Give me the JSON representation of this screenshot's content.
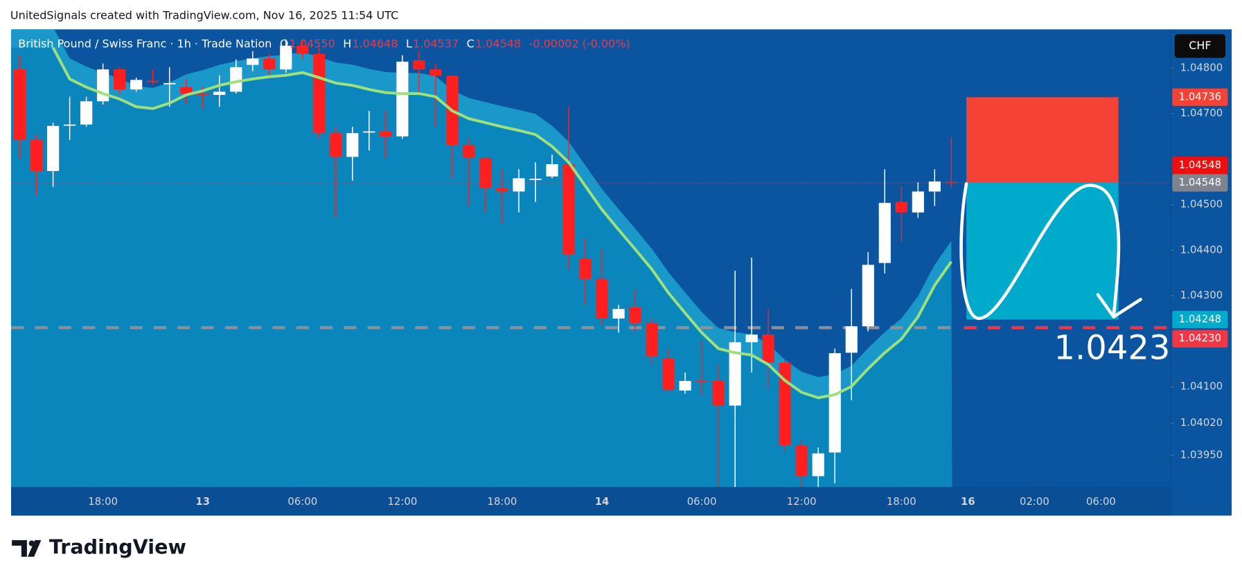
{
  "header": {
    "title": "UnitedSignals created with TradingView.com, Nov 16, 2025 11:54 UTC"
  },
  "logo": "TradingView",
  "currency_button": "CHF",
  "chart_data": {
    "type": "candlestick",
    "legend": {
      "symbol": "British Pound / Swiss Franc · 1h · Trade Nation",
      "ohlc": [
        {
          "key": "O",
          "value": "1.04550"
        },
        {
          "key": "H",
          "value": "1.04648"
        },
        {
          "key": "L",
          "value": "1.04537"
        },
        {
          "key": "C",
          "value": "1.04548"
        }
      ],
      "change": "-0.00002 (-0.00%)"
    },
    "categories": [
      null,
      null,
      null,
      null,
      null,
      "18:00",
      null,
      null,
      null,
      null,
      null,
      "13",
      null,
      null,
      null,
      null,
      null,
      "06:00",
      null,
      null,
      null,
      null,
      null,
      "12:00",
      null,
      null,
      null,
      null,
      null,
      "18:00",
      null,
      null,
      null,
      null,
      null,
      "14",
      null,
      null,
      null,
      null,
      null,
      "06:00",
      null,
      null,
      null,
      null,
      null,
      "12:00",
      null,
      null,
      null,
      null,
      null,
      "18:00",
      null,
      null,
      null,
      "16",
      null,
      null,
      null,
      "02:00",
      null,
      null,
      null,
      "06:00",
      null,
      null,
      null,
      null
    ],
    "open": [
      1.04797,
      1.04642,
      1.04574,
      1.04675,
      1.04676,
      1.04727,
      1.04797,
      1.04753,
      1.04772,
      1.04765,
      1.04758,
      1.04744,
      1.04741,
      1.04748,
      1.04807,
      1.04821,
      1.04797,
      1.04849,
      1.04831,
      1.04657,
      1.04605,
      1.04659,
      1.04661,
      1.0465,
      1.04817,
      1.04797,
      1.04783,
      1.04631,
      1.04602,
      1.04537,
      1.04529,
      1.04556,
      1.04562,
      1.04589,
      1.04382,
      1.04337,
      1.0425,
      1.04275,
      1.0424,
      1.04163,
      1.04092,
      1.04114,
      1.04113,
      1.04059,
      1.04198,
      1.04215,
      1.04153,
      1.03972,
      1.03904,
      1.03956,
      1.04175,
      1.04233,
      1.04372,
      1.04506,
      1.04483,
      1.04529,
      1.0455,
      null,
      null,
      null,
      null,
      null,
      null,
      null,
      null,
      null,
      null,
      null,
      null,
      null
    ],
    "high": [
      1.04828,
      1.04654,
      1.0468,
      1.04737,
      1.04737,
      1.0481,
      1.04802,
      1.04779,
      1.04797,
      1.04802,
      1.04776,
      1.04758,
      1.04784,
      1.04819,
      1.04837,
      1.04831,
      1.04863,
      1.04863,
      1.04845,
      1.04671,
      1.04671,
      1.04706,
      1.04706,
      1.04828,
      1.04837,
      1.0481,
      1.04784,
      1.04645,
      1.04605,
      1.04578,
      1.04578,
      1.04593,
      1.0461,
      1.04715,
      1.04428,
      1.04402,
      1.0428,
      1.04315,
      1.0425,
      1.04184,
      1.04132,
      1.04201,
      1.04149,
      1.04355,
      1.04384,
      1.04271,
      1.04158,
      1.03984,
      1.03967,
      1.04184,
      1.04315,
      1.04396,
      1.04578,
      1.04541,
      1.04549,
      1.04578,
      1.04648,
      null,
      null,
      null,
      null,
      null,
      null,
      null,
      null,
      null,
      null,
      null,
      null,
      null
    ],
    "low": [
      1.04602,
      1.04522,
      1.04539,
      1.04642,
      1.04671,
      1.0472,
      1.04744,
      1.04748,
      1.04763,
      1.04715,
      1.04723,
      1.0471,
      1.04715,
      1.04744,
      1.04793,
      1.04784,
      1.0479,
      1.04819,
      1.04645,
      1.04471,
      1.04553,
      1.04619,
      1.04602,
      1.04645,
      1.04741,
      1.04671,
      1.04558,
      1.04497,
      1.04483,
      1.04457,
      1.04483,
      1.04506,
      1.04558,
      1.04358,
      1.0428,
      1.04236,
      1.04219,
      1.04219,
      1.04149,
      1.04088,
      1.04085,
      1.0408,
      1.03879,
      1.03879,
      1.04132,
      1.04097,
      1.03958,
      1.03879,
      1.03879,
      1.03888,
      1.04071,
      1.04222,
      1.04349,
      1.04419,
      1.04471,
      1.04497,
      1.04537,
      null,
      null,
      null,
      null,
      null,
      null,
      null,
      null,
      null,
      null,
      null,
      null,
      null
    ],
    "close": [
      1.04642,
      1.04574,
      1.04673,
      1.04676,
      1.04727,
      1.04797,
      1.04753,
      1.04774,
      1.0477,
      1.04767,
      1.04744,
      1.04741,
      1.04748,
      1.04802,
      1.04821,
      1.04797,
      1.04849,
      1.04831,
      1.04657,
      1.04605,
      1.04657,
      1.04661,
      1.0465,
      1.04814,
      1.04797,
      1.04783,
      1.04631,
      1.04603,
      1.04537,
      1.04529,
      1.04558,
      1.04557,
      1.04589,
      1.04391,
      1.04337,
      1.0425,
      1.04271,
      1.0424,
      1.04167,
      1.04094,
      1.04113,
      1.04113,
      1.04059,
      1.04198,
      1.04215,
      1.04153,
      1.03972,
      1.03904,
      1.03954,
      1.04174,
      1.04233,
      1.04368,
      1.04504,
      1.04483,
      1.04529,
      1.04551,
      1.04548,
      null,
      null,
      null,
      null,
      null,
      null,
      null,
      null,
      null,
      null,
      null,
      null,
      null
    ],
    "moving_average": [
      null,
      null,
      1.04845,
      1.04776,
      1.04758,
      1.04744,
      1.04732,
      1.04715,
      1.04711,
      1.04723,
      1.04741,
      1.0475,
      1.04762,
      1.0477,
      1.04776,
      1.04781,
      1.04784,
      1.0479,
      1.04779,
      1.04767,
      1.04762,
      1.04753,
      1.04746,
      1.04744,
      1.04744,
      1.04737,
      1.04706,
      1.04689,
      1.0468,
      1.04671,
      1.04663,
      1.04654,
      1.04628,
      1.04593,
      1.04541,
      1.04489,
      1.04445,
      1.04402,
      1.04358,
      1.04306,
      1.04262,
      1.04219,
      1.04184,
      1.04175,
      1.0417,
      1.04149,
      1.04114,
      1.04088,
      1.04076,
      1.04083,
      1.04101,
      1.0414,
      1.04175,
      1.04205,
      1.04254,
      1.04323,
      1.04375,
      null,
      null,
      null,
      null,
      null,
      null,
      null,
      null,
      null,
      null,
      null,
      null,
      null
    ],
    "up_color": "#ffffff",
    "down_color": "#ff1f1f",
    "ma_color": "#9ee07c",
    "ylim": [
      1.0388,
      1.04885
    ],
    "yticks": [
      {
        "value": 1.048,
        "label": "1.04800"
      },
      {
        "value": 1.047,
        "label": "1.04700"
      },
      {
        "value": 1.045,
        "label": "1.04500"
      },
      {
        "value": 1.044,
        "label": "1.04400"
      },
      {
        "value": 1.043,
        "label": "1.04300"
      },
      {
        "value": 1.041,
        "label": "1.04100"
      },
      {
        "value": 1.0402,
        "label": "1.04020"
      },
      {
        "value": 1.0395,
        "label": "1.03950"
      }
    ],
    "last_price": 1.04548,
    "position": {
      "stop": 1.04736,
      "entry": 1.04548,
      "target": 1.04248
    },
    "level": {
      "value": 1.0423,
      "label": "1.04230"
    },
    "annotation": "1.0423",
    "grid": false
  }
}
